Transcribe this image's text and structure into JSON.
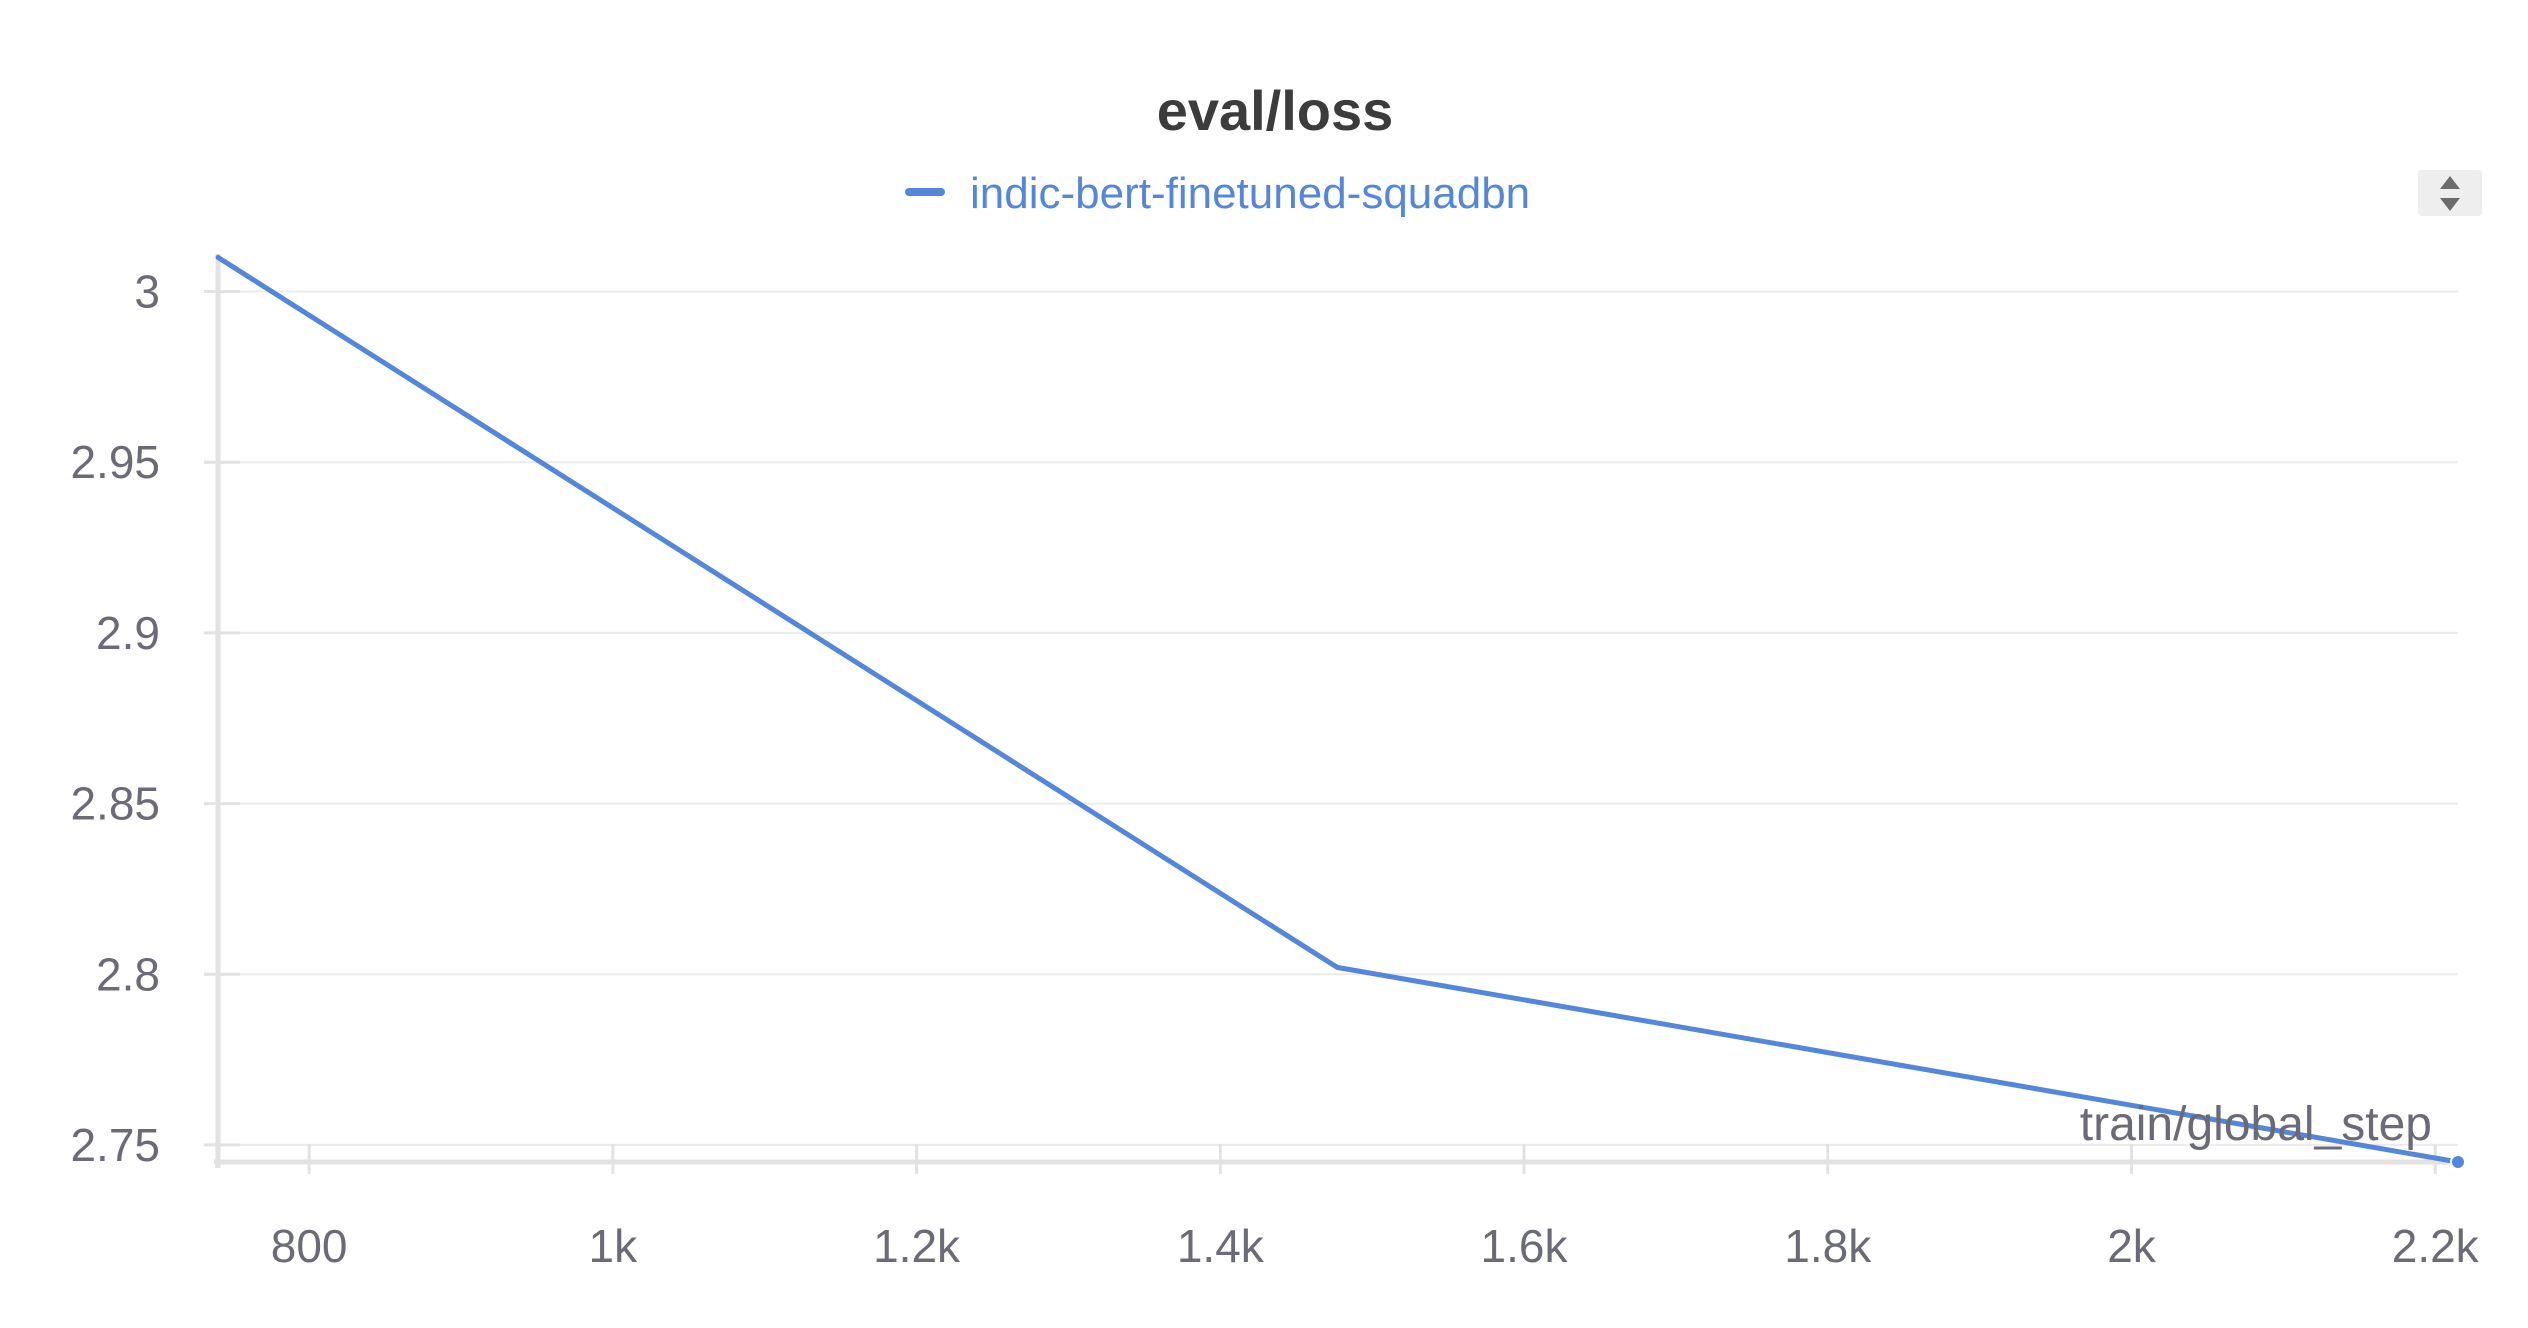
{
  "chart_data": {
    "type": "line",
    "title": "eval/loss",
    "xlabel": "train/global_step",
    "ylabel": "",
    "legend": {
      "placement": "top-center"
    },
    "grid": true,
    "xlim": [
      740,
      2215
    ],
    "ylim": [
      2.745,
      3.011
    ],
    "x_ticks": [
      {
        "value": 800,
        "label": "800"
      },
      {
        "value": 1000,
        "label": "1k"
      },
      {
        "value": 1200,
        "label": "1.2k"
      },
      {
        "value": 1400,
        "label": "1.4k"
      },
      {
        "value": 1600,
        "label": "1.6k"
      },
      {
        "value": 1800,
        "label": "1.8k"
      },
      {
        "value": 2000,
        "label": "2k"
      },
      {
        "value": 2200,
        "label": "2.2k"
      }
    ],
    "y_ticks": [
      {
        "value": 3.0,
        "label": "3"
      },
      {
        "value": 2.95,
        "label": "2.95"
      },
      {
        "value": 2.9,
        "label": "2.9"
      },
      {
        "value": 2.85,
        "label": "2.85"
      },
      {
        "value": 2.8,
        "label": "2.8"
      },
      {
        "value": 2.75,
        "label": "2.75"
      }
    ],
    "series": [
      {
        "name": "indic-bert-finetuned-squadbn",
        "color": "#5387DD",
        "x": [
          740,
          1477,
          2215
        ],
        "y": [
          3.01,
          2.802,
          2.745
        ]
      }
    ]
  },
  "colors": {
    "text": "#3c3c3c",
    "tick": "#6b6b78",
    "grid": "#ececec",
    "axis": "#e2e2e2",
    "series": "#5387DD"
  },
  "controls": {
    "legend_scroll_icon": "up-down-arrows-icon"
  }
}
